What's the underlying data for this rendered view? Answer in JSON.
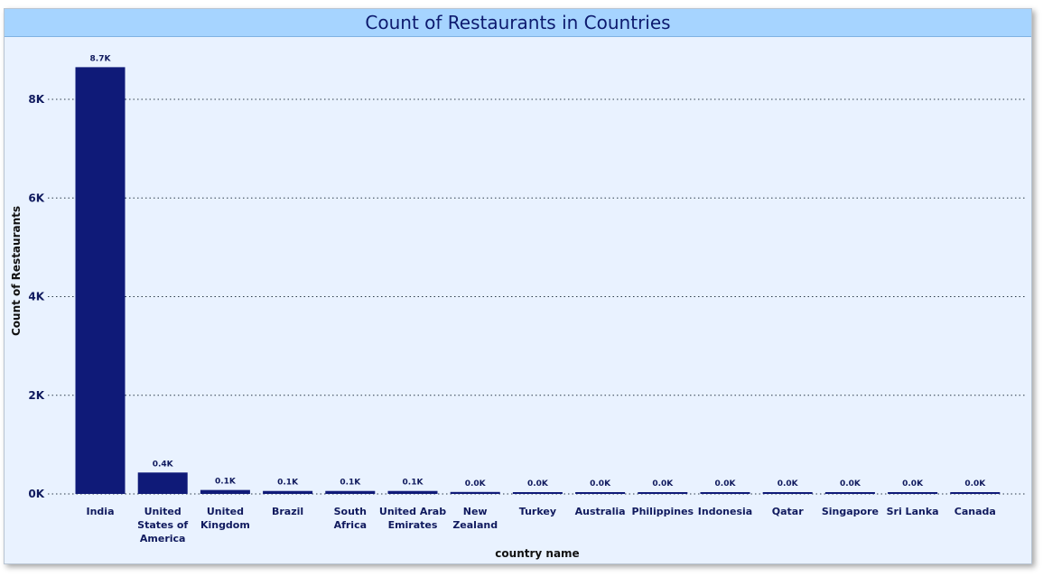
{
  "chart_data": {
    "type": "bar",
    "title": "Count of Restaurants in Countries",
    "xlabel": "country name",
    "ylabel": "Count of Restaurants",
    "ylim": [
      0,
      8800
    ],
    "y_ticks": [
      0,
      2000,
      4000,
      6000,
      8000
    ],
    "y_tick_labels": [
      "0K",
      "2K",
      "4K",
      "6K",
      "8K"
    ],
    "grid": true,
    "bar_color": "#0f1a78",
    "categories": [
      "India",
      "United States of America",
      "United Kingdom",
      "Brazil",
      "South Africa",
      "United Arab Emirates",
      "New Zealand",
      "Turkey",
      "Australia",
      "Philippines",
      "Indonesia",
      "Qatar",
      "Singapore",
      "Sri Lanka",
      "Canada"
    ],
    "category_lines": [
      [
        "India"
      ],
      [
        "United",
        "States of",
        "America"
      ],
      [
        "United",
        "Kingdom"
      ],
      [
        "Brazil"
      ],
      [
        "South",
        "Africa"
      ],
      [
        "United Arab",
        "Emirates"
      ],
      [
        "New",
        "Zealand"
      ],
      [
        "Turkey"
      ],
      [
        "Australia"
      ],
      [
        "Philippines"
      ],
      [
        "Indonesia"
      ],
      [
        "Qatar"
      ],
      [
        "Singapore"
      ],
      [
        "Sri Lanka"
      ],
      [
        "Canada"
      ]
    ],
    "values": [
      8652,
      434,
      80,
      60,
      60,
      60,
      40,
      34,
      24,
      22,
      21,
      20,
      20,
      20,
      4
    ],
    "data_labels": [
      "8.7K",
      "0.4K",
      "0.1K",
      "0.1K",
      "0.1K",
      "0.1K",
      "0.0K",
      "0.0K",
      "0.0K",
      "0.0K",
      "0.0K",
      "0.0K",
      "0.0K",
      "0.0K",
      "0.0K"
    ]
  }
}
